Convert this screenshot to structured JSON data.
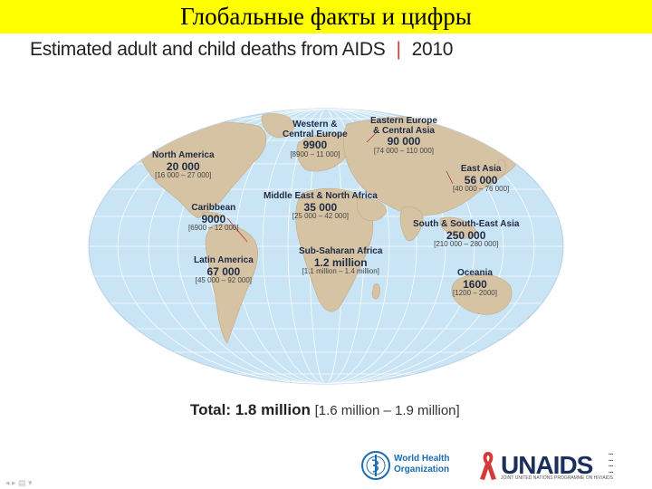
{
  "header": {
    "title": "Глобальные факты и цифры"
  },
  "subtitle": {
    "text": "Estimated adult and child deaths from AIDS",
    "separator": "|",
    "year": "2010"
  },
  "regions": [
    {
      "name": "Western & Central Europe",
      "line1": "Western &",
      "line2": "Central Europe",
      "value": "9900",
      "range": "[8900 – 11 000]"
    },
    {
      "name": "Eastern Europe & Central Asia",
      "line1": "Eastern Europe",
      "line2": "& Central Asia",
      "value": "90 000",
      "range": "[74 000 – 110 000]"
    },
    {
      "name": "North America",
      "line1": "North America",
      "line2": "",
      "value": "20 000",
      "range": "[16 000 – 27 000]"
    },
    {
      "name": "East Asia",
      "line1": "East Asia",
      "line2": "",
      "value": "56 000",
      "range": "[40 000 – 76 000]"
    },
    {
      "name": "Middle East & North Africa",
      "line1": "Middle East & North Africa",
      "line2": "",
      "value": "35 000",
      "range": "[25 000 – 42 000]"
    },
    {
      "name": "Caribbean",
      "line1": "Caribbean",
      "line2": "",
      "value": "9000",
      "range": "[6900 – 12 000]"
    },
    {
      "name": "South & South-East Asia",
      "line1": "South & South-East Asia",
      "line2": "",
      "value": "250 000",
      "range": "[210 000 – 280 000]"
    },
    {
      "name": "Sub-Saharan Africa",
      "line1": "Sub-Saharan Africa",
      "line2": "",
      "value": "1.2 million",
      "range": "[1.1 million – 1.4 million]"
    },
    {
      "name": "Latin America",
      "line1": "Latin America",
      "line2": "",
      "value": "67 000",
      "range": "[45 000 – 92 000]"
    },
    {
      "name": "Oceania",
      "line1": "Oceania",
      "line2": "",
      "value": "1600",
      "range": "[1200 – 2000]"
    }
  ],
  "total": {
    "label": "Total:",
    "value": "1.8 million",
    "range": "[1.6 million – 1.9 million]"
  },
  "logos": {
    "who_line1": "World Health",
    "who_line2": "Organization",
    "unaids": "UNAIDS",
    "unaids_sub": "JOINT UNITED NATIONS PROGRAMME ON HIV/AIDS"
  },
  "colors": {
    "title_bar": "#ffff00",
    "ocean": "#c9e4f4",
    "land": "#d6c3a4",
    "accent_red": "#d43a3a"
  }
}
